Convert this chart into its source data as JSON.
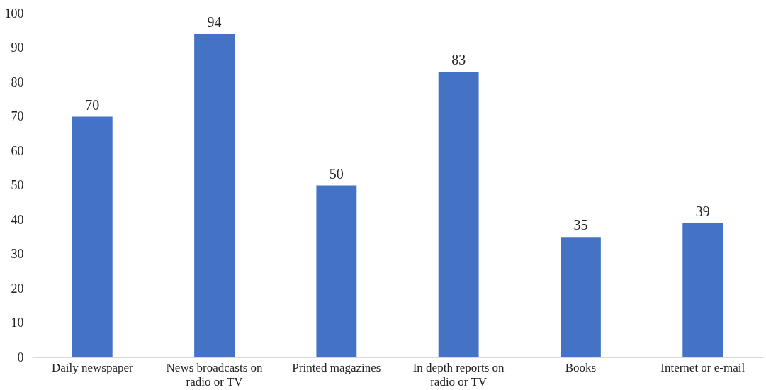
{
  "chart_data": {
    "type": "bar",
    "categories": [
      "Daily newspaper",
      "News broadcasts on radio or TV",
      "Printed magazines",
      "In depth reports on radio or TV",
      "Books",
      "Internet or e-mail"
    ],
    "values": [
      70,
      94,
      50,
      83,
      35,
      39
    ],
    "color": "#4472c4",
    "ylim": [
      0,
      100
    ],
    "yticks": [
      0,
      10,
      20,
      30,
      40,
      50,
      60,
      70,
      80,
      90,
      100
    ],
    "grid": false,
    "data_labels": true
  }
}
